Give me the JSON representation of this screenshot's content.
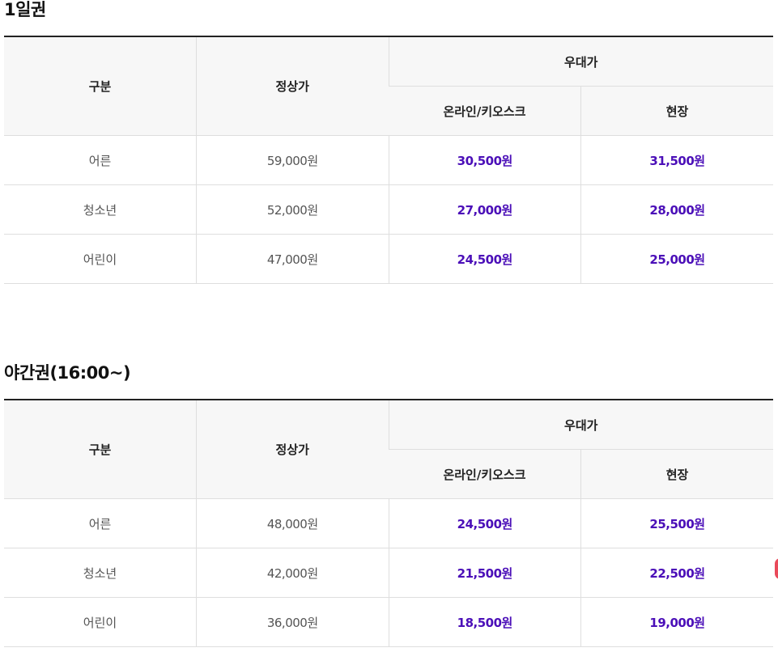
{
  "tables": [
    {
      "title": "1일권",
      "headers": {
        "category": "구분",
        "regular": "정상가",
        "discount_group": "우대가",
        "online": "온라인/키오스크",
        "onsite": "현장"
      },
      "rows": [
        {
          "category": "어른",
          "regular": "59,000원",
          "online": "30,500원",
          "onsite": "31,500원"
        },
        {
          "category": "청소년",
          "regular": "52,000원",
          "online": "27,000원",
          "onsite": "28,000원"
        },
        {
          "category": "어린이",
          "regular": "47,000원",
          "online": "24,500원",
          "onsite": "25,000원"
        }
      ]
    },
    {
      "title": "야간권(16:00~)",
      "headers": {
        "category": "구분",
        "regular": "정상가",
        "discount_group": "우대가",
        "online": "온라인/키오스크",
        "onsite": "현장"
      },
      "rows": [
        {
          "category": "어른",
          "regular": "48,000원",
          "online": "24,500원",
          "onsite": "25,500원"
        },
        {
          "category": "청소년",
          "regular": "42,000원",
          "online": "21,500원",
          "onsite": "22,500원"
        },
        {
          "category": "어린이",
          "regular": "36,000원",
          "online": "18,500원",
          "onsite": "19,000원"
        }
      ]
    }
  ],
  "colors": {
    "discount_price": "#4b0fb8",
    "header_background": "#f7f7f7",
    "top_border": "#222222",
    "row_border": "#dedede",
    "edge_indicator": "#e94a5a"
  }
}
